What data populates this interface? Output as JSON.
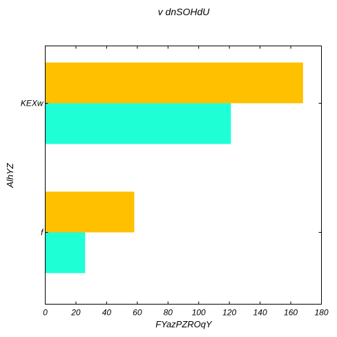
{
  "chart_data": {
    "type": "bar",
    "orientation": "horizontal",
    "title": "v dnSOHdU",
    "xlabel": "FYazPZROqY",
    "ylabel": "AlhYZ",
    "categories": [
      "KEXw",
      "f"
    ],
    "series": [
      {
        "values": [
          168,
          58
        ],
        "color": "#ffc000"
      },
      {
        "values": [
          121,
          26
        ],
        "color": "#1effd6"
      }
    ],
    "xlim": [
      0,
      180
    ],
    "xticks": [
      0,
      20,
      40,
      60,
      80,
      100,
      120,
      140,
      160,
      180
    ],
    "grid": false,
    "legend": "none"
  }
}
